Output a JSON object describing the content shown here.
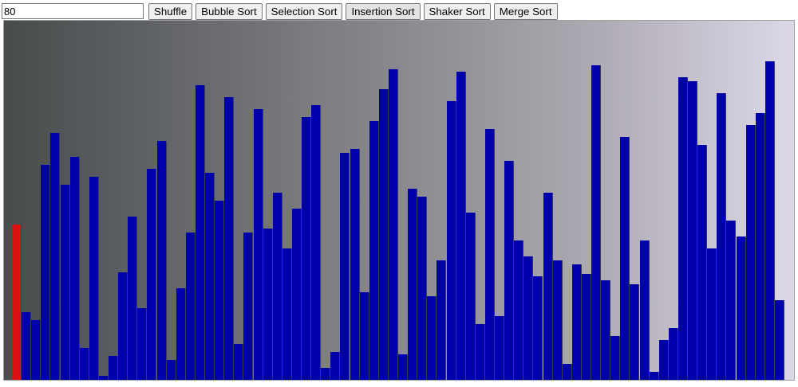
{
  "toolbar": {
    "count_value": "80",
    "shuffle_label": "Shuffle",
    "bubble_label": "Bubble Sort",
    "selection_label": "Selection Sort",
    "insertion_label": "Insertion Sort",
    "shaker_label": "Shaker Sort",
    "merge_label": "Merge Sort"
  },
  "colors": {
    "bar": "#0000aa",
    "highlight": "#dd1111"
  },
  "visualization": {
    "max_value": 100,
    "highlight_index": 0,
    "values": [
      43.3,
      18.9,
      16.7,
      60.0,
      68.9,
      54.4,
      62.2,
      8.9,
      56.7,
      1.1,
      6.7,
      30.0,
      45.6,
      20.0,
      58.9,
      66.7,
      5.6,
      25.6,
      41.1,
      82.2,
      57.8,
      50.0,
      78.9,
      10.0,
      41.1,
      75.6,
      42.2,
      52.2,
      36.7,
      47.8,
      73.3,
      76.7,
      3.3,
      7.8,
      63.3,
      64.4,
      24.4,
      72.2,
      81.1,
      86.7,
      7.2,
      53.3,
      51.1,
      23.3,
      33.3,
      77.8,
      86.1,
      46.7,
      15.6,
      70.0,
      17.8,
      61.1,
      38.9,
      34.4,
      28.9,
      52.2,
      33.3,
      4.4,
      32.2,
      29.6,
      87.8,
      27.8,
      12.2,
      67.8,
      26.7,
      38.9,
      2.2,
      11.1,
      14.4,
      84.4,
      83.3,
      65.6,
      36.7,
      80.0,
      44.4,
      40.0,
      71.1,
      74.4,
      88.9,
      22.2
    ]
  }
}
